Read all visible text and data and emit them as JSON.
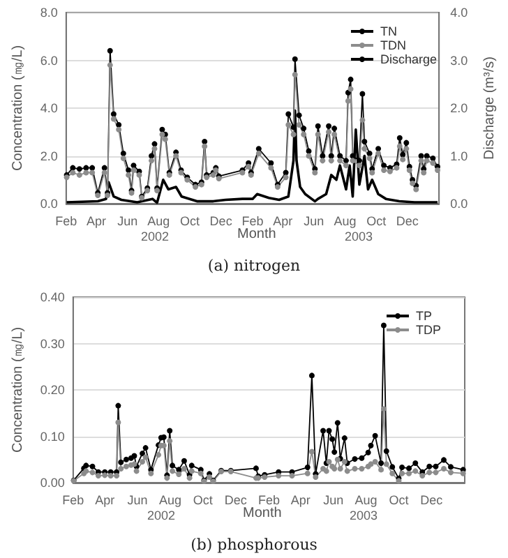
{
  "chart_data": [
    {
      "type": "line",
      "title": "(a) nitrogen",
      "xlabel": "Month",
      "ylabel": "Concentration (㎎/L)",
      "y2label": "Discharge (m³/s)",
      "annotations": [
        "2002",
        "2003"
      ],
      "xlim": [
        "2002-02-01",
        "2004-02-01"
      ],
      "xticks": [
        {
          "value": "2002-02-01",
          "label": "Feb"
        },
        {
          "value": "2002-04-01",
          "label": "Apr"
        },
        {
          "value": "2002-06-01",
          "label": "Jun"
        },
        {
          "value": "2002-08-01",
          "label": "Aug"
        },
        {
          "value": "2002-10-01",
          "label": "Oct"
        },
        {
          "value": "2002-12-01",
          "label": "Dec"
        },
        {
          "value": "2003-02-01",
          "label": "Feb"
        },
        {
          "value": "2003-04-01",
          "label": "Apr"
        },
        {
          "value": "2003-06-01",
          "label": "Jun"
        },
        {
          "value": "2003-08-01",
          "label": "Aug"
        },
        {
          "value": "2003-10-01",
          "label": "Oct"
        },
        {
          "value": "2003-12-01",
          "label": "Dec"
        }
      ],
      "ylim": [
        0,
        8
      ],
      "yticks": [
        {
          "value": 0,
          "label": "0.0"
        },
        {
          "value": 2,
          "label": "2.0"
        },
        {
          "value": 4,
          "label": "4.0"
        },
        {
          "value": 6,
          "label": "6.0"
        },
        {
          "value": 8,
          "label": "8.0"
        }
      ],
      "y2lim": [
        0,
        4
      ],
      "y2ticks": [
        {
          "value": 0,
          "label": "0.0"
        },
        {
          "value": 1,
          "label": "1.0"
        },
        {
          "value": 2,
          "label": "2.0"
        },
        {
          "value": 3,
          "label": "3.0"
        },
        {
          "value": 4,
          "label": "4.0"
        }
      ],
      "grid": "y",
      "legend": "top right",
      "line_style": "solid",
      "series": [
        {
          "name": "TN",
          "color": "#000000",
          "marker": "circle",
          "x": [
            "2002-02-02",
            "2002-02-14",
            "2002-02-27",
            "2002-03-12",
            "2002-03-24",
            "2002-04-04",
            "2002-04-17",
            "2002-04-23",
            "2002-04-28",
            "2002-05-05",
            "2002-05-15",
            "2002-05-24",
            "2002-06-03",
            "2002-06-09",
            "2002-06-13",
            "2002-06-24",
            "2002-06-29",
            "2002-07-10",
            "2002-07-18",
            "2002-07-24",
            "2002-07-29",
            "2002-08-08",
            "2002-08-14",
            "2002-08-22",
            "2002-09-04",
            "2002-09-14",
            "2002-09-26",
            "2002-10-12",
            "2002-10-24",
            "2002-10-30",
            "2002-11-03",
            "2002-11-16",
            "2002-11-21",
            "2002-11-27",
            "2003-01-12",
            "2003-01-24",
            "2003-01-29",
            "2003-02-13",
            "2003-03-09",
            "2003-03-22",
            "2003-04-07",
            "2003-04-12",
            "2003-04-22",
            "2003-04-25",
            "2003-05-03",
            "2003-05-12",
            "2003-05-22",
            "2003-06-03",
            "2003-06-09",
            "2003-06-18",
            "2003-06-30",
            "2003-07-05",
            "2003-07-11",
            "2003-07-22",
            "2003-08-03",
            "2003-08-07",
            "2003-08-12",
            "2003-08-16",
            "2003-08-29",
            "2003-09-04",
            "2003-09-08",
            "2003-09-18",
            "2003-09-23",
            "2003-10-05",
            "2003-10-16",
            "2003-10-28",
            "2003-11-10",
            "2003-11-16",
            "2003-11-22",
            "2003-11-29",
            "2003-12-05",
            "2003-12-11",
            "2003-12-18",
            "2003-12-28",
            "2004-01-02",
            "2004-01-08",
            "2004-01-20",
            "2004-01-29"
          ],
          "values": [
            1.2,
            1.5,
            1.45,
            1.5,
            1.5,
            0.45,
            1.5,
            0.45,
            6.4,
            3.75,
            3.3,
            2.1,
            1.4,
            0.55,
            1.6,
            1.35,
            0.3,
            0.65,
            2.0,
            2.5,
            0.65,
            3.1,
            2.9,
            1.3,
            2.15,
            1.4,
            1.1,
            0.8,
            0.9,
            2.6,
            1.2,
            1.3,
            1.5,
            1.15,
            1.4,
            1.7,
            1.3,
            2.3,
            1.7,
            0.8,
            1.3,
            3.75,
            3.2,
            6.05,
            3.7,
            3.15,
            2.2,
            1.45,
            3.25,
            2.0,
            3.25,
            2.0,
            3.15,
            2.0,
            1.8,
            4.65,
            5.2,
            2.0,
            1.8,
            4.6,
            2.6,
            2.1,
            1.45,
            2.3,
            1.6,
            1.5,
            1.65,
            2.75,
            2.05,
            2.55,
            1.55,
            1.0,
            0.75,
            2.0,
            1.45,
            2.0,
            1.9,
            1.55
          ]
        },
        {
          "name": "TDN",
          "color": "#8c8c8c",
          "marker": "circle",
          "x": [
            "2002-02-02",
            "2002-02-14",
            "2002-02-27",
            "2002-03-12",
            "2002-03-24",
            "2002-04-04",
            "2002-04-17",
            "2002-04-23",
            "2002-04-28",
            "2002-05-05",
            "2002-05-15",
            "2002-05-24",
            "2002-06-03",
            "2002-06-09",
            "2002-06-13",
            "2002-06-24",
            "2002-06-29",
            "2002-07-10",
            "2002-07-18",
            "2002-07-24",
            "2002-07-29",
            "2002-08-08",
            "2002-08-14",
            "2002-08-22",
            "2002-09-04",
            "2002-09-14",
            "2002-09-26",
            "2002-10-12",
            "2002-10-24",
            "2002-10-30",
            "2002-11-03",
            "2002-11-16",
            "2002-11-21",
            "2002-11-27",
            "2003-01-12",
            "2003-01-24",
            "2003-01-29",
            "2003-02-13",
            "2003-03-09",
            "2003-03-22",
            "2003-04-07",
            "2003-04-12",
            "2003-04-22",
            "2003-04-25",
            "2003-05-03",
            "2003-05-12",
            "2003-05-22",
            "2003-06-03",
            "2003-06-09",
            "2003-06-18",
            "2003-06-30",
            "2003-07-05",
            "2003-07-11",
            "2003-07-22",
            "2003-08-03",
            "2003-08-07",
            "2003-08-12",
            "2003-08-16",
            "2003-08-29",
            "2003-09-04",
            "2003-09-08",
            "2003-09-18",
            "2003-09-23",
            "2003-10-05",
            "2003-10-16",
            "2003-10-28",
            "2003-11-10",
            "2003-11-16",
            "2003-11-22",
            "2003-11-29",
            "2003-12-05",
            "2003-12-11",
            "2003-12-18",
            "2003-12-28",
            "2004-01-02",
            "2004-01-08",
            "2004-01-20",
            "2004-01-29"
          ],
          "values": [
            1.1,
            1.3,
            1.2,
            1.3,
            1.3,
            0.35,
            1.3,
            0.35,
            5.8,
            3.55,
            3.1,
            1.9,
            1.2,
            0.45,
            1.4,
            1.2,
            0.25,
            0.55,
            1.8,
            2.3,
            0.55,
            2.9,
            2.7,
            1.2,
            2.0,
            1.3,
            1.0,
            0.7,
            0.8,
            2.4,
            1.1,
            1.2,
            1.4,
            1.05,
            1.3,
            1.55,
            1.2,
            2.1,
            1.5,
            0.7,
            1.1,
            3.3,
            2.9,
            5.4,
            3.3,
            2.9,
            2.0,
            1.3,
            2.9,
            1.8,
            3.0,
            1.8,
            2.9,
            1.8,
            1.6,
            4.3,
            4.8,
            1.8,
            1.6,
            3.5,
            2.3,
            1.9,
            1.3,
            2.1,
            1.4,
            1.35,
            1.5,
            2.4,
            1.85,
            2.3,
            1.4,
            0.85,
            0.6,
            1.8,
            1.3,
            1.8,
            1.7,
            1.4
          ]
        },
        {
          "name": "Discharge",
          "color": "#000000",
          "marker": "none",
          "axis": "y2",
          "x": [
            "2002-02-02",
            "2002-04-04",
            "2002-04-20",
            "2002-04-25",
            "2002-05-05",
            "2002-05-20",
            "2002-06-20",
            "2002-07-20",
            "2002-07-29",
            "2002-08-10",
            "2002-08-20",
            "2002-09-04",
            "2002-09-15",
            "2002-10-15",
            "2002-11-16",
            "2002-12-10",
            "2003-01-12",
            "2003-02-01",
            "2003-02-10",
            "2003-03-05",
            "2003-03-25",
            "2003-04-12",
            "2003-04-22",
            "2003-04-25",
            "2003-04-28",
            "2003-05-05",
            "2003-05-15",
            "2003-06-03",
            "2003-06-09",
            "2003-06-25",
            "2003-07-05",
            "2003-07-15",
            "2003-07-22",
            "2003-08-03",
            "2003-08-10",
            "2003-08-16",
            "2003-08-22",
            "2003-08-29",
            "2003-09-08",
            "2003-09-15",
            "2003-09-23",
            "2003-10-05",
            "2003-10-20",
            "2003-11-15",
            "2003-12-15",
            "2004-01-29"
          ],
          "values": [
            0.03,
            0.05,
            0.1,
            0.45,
            0.15,
            0.08,
            0.03,
            0.1,
            0.02,
            0.5,
            0.3,
            0.35,
            0.15,
            0.05,
            0.05,
            0.08,
            0.1,
            0.1,
            0.2,
            0.12,
            0.08,
            0.15,
            0.9,
            1.95,
            0.9,
            0.35,
            0.2,
            0.05,
            0.1,
            0.2,
            0.6,
            0.5,
            0.8,
            0.3,
            0.8,
            0.15,
            1.55,
            0.4,
            1.0,
            0.3,
            0.5,
            0.2,
            0.1,
            0.05,
            0.03,
            0.03
          ]
        }
      ]
    },
    {
      "type": "line",
      "title": "(b) phosphorous",
      "xlabel": "Month",
      "ylabel": "Concentration (㎎/L)",
      "annotations": [
        "2002",
        "2003"
      ],
      "xlim": [
        "2002-02-01",
        "2004-02-01"
      ],
      "xticks": [
        {
          "value": "2002-02-01",
          "label": "Feb"
        },
        {
          "value": "2002-04-01",
          "label": "Apr"
        },
        {
          "value": "2002-06-01",
          "label": "Jun"
        },
        {
          "value": "2002-08-01",
          "label": "Aug"
        },
        {
          "value": "2002-10-01",
          "label": "Oct"
        },
        {
          "value": "2002-12-01",
          "label": "Dec"
        },
        {
          "value": "2003-02-01",
          "label": "Feb"
        },
        {
          "value": "2003-04-01",
          "label": "Apr"
        },
        {
          "value": "2003-06-01",
          "label": "Jun"
        },
        {
          "value": "2003-08-01",
          "label": "Aug"
        },
        {
          "value": "2003-10-01",
          "label": "Oct"
        },
        {
          "value": "2003-12-01",
          "label": "Dec"
        }
      ],
      "ylim": [
        0,
        0.4
      ],
      "yticks": [
        {
          "value": 0,
          "label": "0.00"
        },
        {
          "value": 0.1,
          "label": "0.10"
        },
        {
          "value": 0.2,
          "label": "0.20"
        },
        {
          "value": 0.3,
          "label": "0.30"
        },
        {
          "value": 0.4,
          "label": "0.40"
        }
      ],
      "grid": "y",
      "legend": "top right",
      "line_style": "solid",
      "series": [
        {
          "name": "TP",
          "color": "#000000",
          "marker": "circle",
          "x": [
            "2002-02-02",
            "2002-02-21",
            "2002-02-25",
            "2002-03-09",
            "2002-03-20",
            "2002-04-01",
            "2002-04-12",
            "2002-04-23",
            "2002-04-26",
            "2002-05-01",
            "2002-05-11",
            "2002-05-20",
            "2002-05-26",
            "2002-05-30",
            "2002-06-10",
            "2002-06-16",
            "2002-06-26",
            "2002-07-10",
            "2002-07-15",
            "2002-07-20",
            "2002-07-26",
            "2002-07-31",
            "2002-08-05",
            "2002-08-17",
            "2002-08-27",
            "2002-09-06",
            "2002-09-10",
            "2002-09-27",
            "2002-10-03",
            "2002-10-13",
            "2002-10-20",
            "2002-11-04",
            "2002-11-22",
            "2003-01-08",
            "2003-01-12",
            "2003-01-24",
            "2003-02-19",
            "2003-03-16",
            "2003-04-14",
            "2003-04-22",
            "2003-04-29",
            "2003-05-13",
            "2003-05-19",
            "2003-05-24",
            "2003-05-30",
            "2003-06-03",
            "2003-06-09",
            "2003-06-14",
            "2003-06-22",
            "2003-06-27",
            "2003-07-11",
            "2003-07-24",
            "2003-08-05",
            "2003-08-10",
            "2003-08-18",
            "2003-08-29",
            "2003-09-03",
            "2003-09-08",
            "2003-09-19",
            "2003-10-01",
            "2003-10-07",
            "2003-10-20",
            "2003-11-01",
            "2003-11-14",
            "2003-11-27",
            "2003-12-09",
            "2003-12-24",
            "2004-01-06",
            "2004-01-29"
          ],
          "values": [
            0.005,
            0.031,
            0.037,
            0.035,
            0.023,
            0.023,
            0.023,
            0.023,
            0.166,
            0.044,
            0.05,
            0.053,
            0.058,
            0.035,
            0.063,
            0.075,
            0.028,
            0.081,
            0.097,
            0.098,
            0.016,
            0.112,
            0.037,
            0.028,
            0.047,
            0.017,
            0.037,
            0.028,
            0.005,
            0.019,
            0.005,
            0.026,
            0.026,
            0.031,
            0.014,
            0.017,
            0.023,
            0.023,
            0.033,
            0.231,
            0.019,
            0.112,
            0.042,
            0.112,
            0.094,
            0.066,
            0.129,
            0.052,
            0.096,
            0.042,
            0.051,
            0.053,
            0.065,
            0.08,
            0.101,
            0.042,
            0.339,
            0.068,
            0.034,
            0.009,
            0.033,
            0.031,
            0.042,
            0.023,
            0.035,
            0.035,
            0.049,
            0.034,
            0.028
          ]
        },
        {
          "name": "TDP",
          "color": "#8c8c8c",
          "marker": "circle",
          "x": [
            "2002-02-02",
            "2002-02-21",
            "2002-02-25",
            "2002-03-09",
            "2002-03-20",
            "2002-04-01",
            "2002-04-12",
            "2002-04-23",
            "2002-04-26",
            "2002-05-01",
            "2002-05-11",
            "2002-05-20",
            "2002-05-26",
            "2002-05-30",
            "2002-06-10",
            "2002-06-16",
            "2002-06-26",
            "2002-07-10",
            "2002-07-15",
            "2002-07-20",
            "2002-07-26",
            "2002-07-31",
            "2002-08-05",
            "2002-08-17",
            "2002-08-27",
            "2002-09-06",
            "2002-09-10",
            "2002-09-27",
            "2002-10-03",
            "2002-10-13",
            "2002-10-20",
            "2002-11-04",
            "2002-11-22",
            "2003-01-08",
            "2003-01-12",
            "2003-01-24",
            "2003-02-19",
            "2003-03-16",
            "2003-04-14",
            "2003-04-22",
            "2003-04-29",
            "2003-05-13",
            "2003-05-19",
            "2003-05-24",
            "2003-05-30",
            "2003-06-03",
            "2003-06-09",
            "2003-06-14",
            "2003-06-22",
            "2003-06-27",
            "2003-07-11",
            "2003-07-24",
            "2003-08-05",
            "2003-08-10",
            "2003-08-18",
            "2003-08-29",
            "2003-09-03",
            "2003-09-08",
            "2003-09-19",
            "2003-10-01",
            "2003-10-07",
            "2003-10-20",
            "2003-11-01",
            "2003-11-14",
            "2003-11-27",
            "2003-12-09",
            "2003-12-24",
            "2004-01-06",
            "2004-01-29"
          ],
          "values": [
            0.004,
            0.02,
            0.025,
            0.022,
            0.015,
            0.016,
            0.015,
            0.015,
            0.13,
            0.03,
            0.035,
            0.038,
            0.04,
            0.025,
            0.045,
            0.055,
            0.02,
            0.06,
            0.08,
            0.08,
            0.01,
            0.09,
            0.025,
            0.018,
            0.03,
            0.01,
            0.025,
            0.02,
            0.003,
            0.012,
            0.003,
            0.024,
            0.024,
            0.01,
            0.01,
            0.012,
            0.015,
            0.015,
            0.02,
            0.067,
            0.012,
            0.03,
            0.025,
            0.045,
            0.035,
            0.03,
            0.05,
            0.03,
            0.045,
            0.025,
            0.03,
            0.03,
            0.035,
            0.04,
            0.045,
            0.028,
            0.159,
            0.04,
            0.02,
            0.004,
            0.02,
            0.02,
            0.025,
            0.015,
            0.022,
            0.022,
            0.03,
            0.022,
            0.02
          ]
        }
      ]
    }
  ]
}
